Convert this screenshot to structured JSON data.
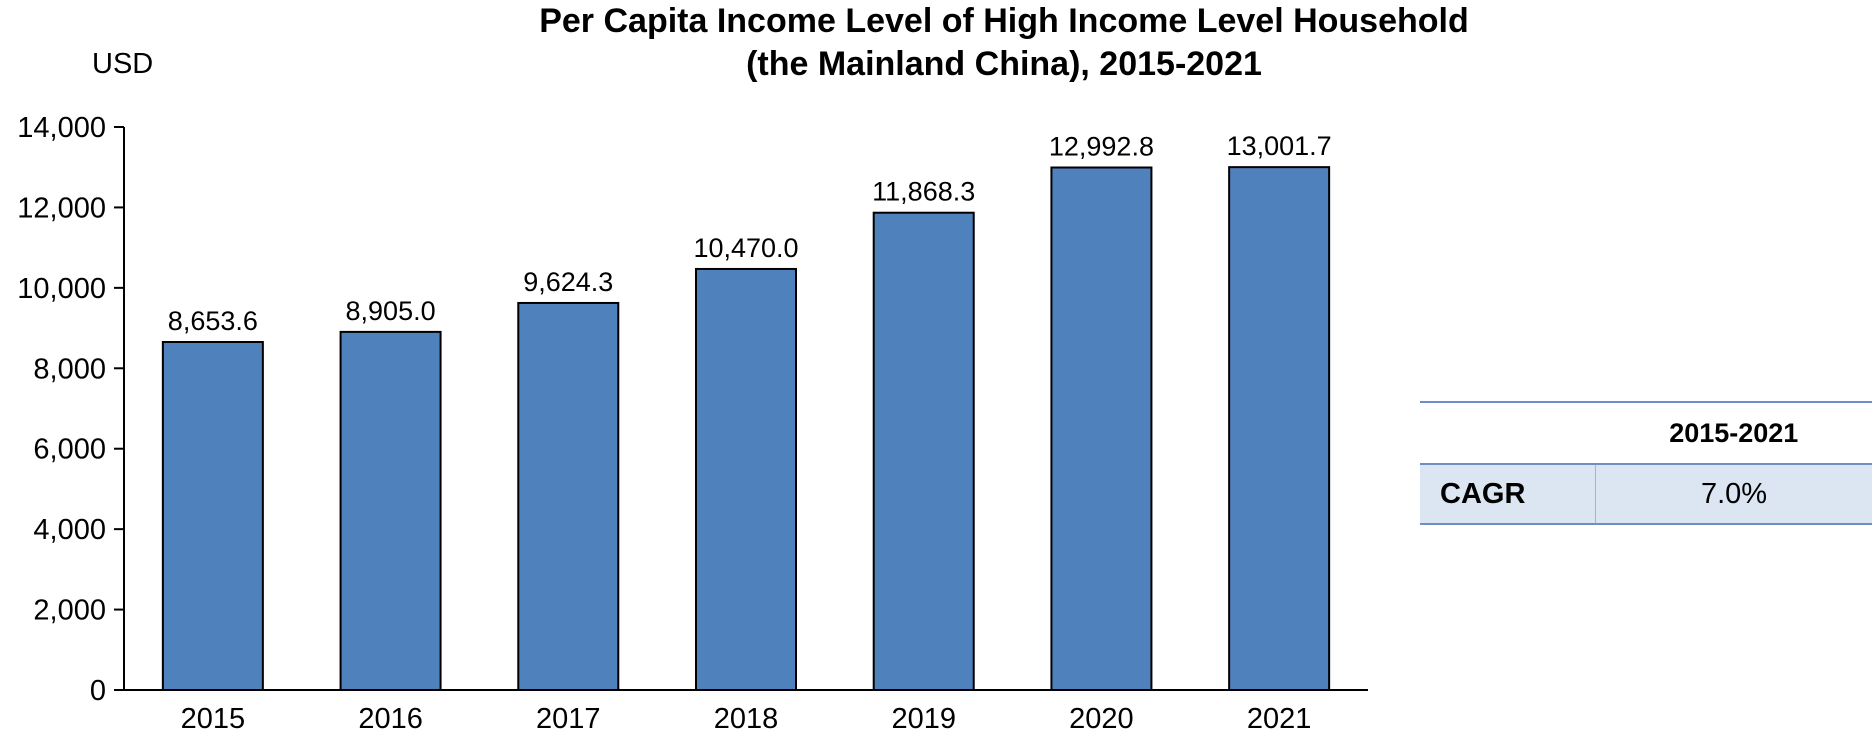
{
  "chart_data": {
    "type": "bar",
    "title_line1": "Per Capita Income Level of High Income Level Household",
    "title_line2": "(the Mainland China), 2015-2021",
    "unit_label": "USD",
    "categories": [
      "2015",
      "2016",
      "2017",
      "2018",
      "2019",
      "2020",
      "2021"
    ],
    "values": [
      8653.6,
      8905.0,
      9624.3,
      10470.0,
      11868.3,
      12992.8,
      13001.7
    ],
    "value_labels": [
      "8,653.6",
      "8,905.0",
      "9,624.3",
      "10,470.0",
      "11,868.3",
      "12,992.8",
      "13,001.7"
    ],
    "ylim": [
      0,
      14000
    ],
    "yticks": [
      0,
      2000,
      4000,
      6000,
      8000,
      10000,
      12000,
      14000
    ],
    "ytick_labels": [
      "0",
      "2,000",
      "4,000",
      "6,000",
      "8,000",
      "10,000",
      "12,000",
      "14,000"
    ],
    "bar_color": "#4f81bd",
    "grid": false,
    "legend": "none"
  },
  "cagr_table": {
    "period_header": "2015-2021",
    "row_label": "CAGR",
    "row_value": "7.0%",
    "row_fill": "#dce6f2",
    "rule_color": "#6f8fc4"
  }
}
